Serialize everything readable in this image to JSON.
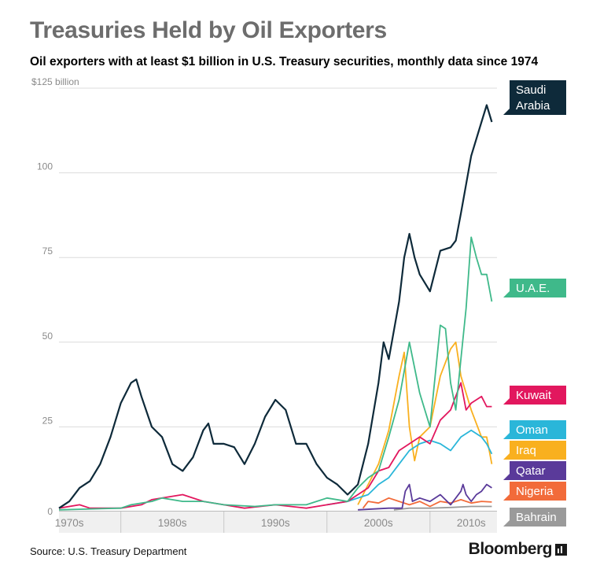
{
  "header": {
    "title": "Treasuries Held by Oil Exporters",
    "subtitle": "Oil exporters with at least $1 billion in U.S. Treasury securities,  monthly data since 1974"
  },
  "footer": {
    "source": "Source: U.S. Treasury Department",
    "brand": "Bloomberg"
  },
  "chart_data": {
    "type": "line",
    "x_range": [
      1974,
      2016.5
    ],
    "ylim": [
      0,
      125
    ],
    "y_ticks": [
      {
        "value": 0,
        "label": "0"
      },
      {
        "value": 25,
        "label": "25"
      },
      {
        "value": 50,
        "label": "50"
      },
      {
        "value": 75,
        "label": "75"
      },
      {
        "value": 100,
        "label": "100"
      },
      {
        "value": 125,
        "label": "$125 billion"
      }
    ],
    "x_labels": [
      {
        "value": 1975,
        "label": "1970s"
      },
      {
        "value": 1985,
        "label": "1980s"
      },
      {
        "value": 1995,
        "label": "1990s"
      },
      {
        "value": 2005,
        "label": "2000s"
      },
      {
        "value": 2014,
        "label": "2010s"
      }
    ],
    "x_dividers": [
      1980,
      1990,
      2000,
      2010
    ],
    "grid": true,
    "series": [
      {
        "name": "Bahrain",
        "color": "#9a9a9a",
        "label_lines": [
          "Bahrain"
        ],
        "points": [
          [
            2006.5,
            0.5
          ],
          [
            2008,
            1
          ],
          [
            2010,
            1
          ],
          [
            2012,
            1.2
          ],
          [
            2014,
            1.5
          ],
          [
            2016,
            1.5
          ]
        ]
      },
      {
        "name": "Nigeria",
        "color": "#f26b3a",
        "label_lines": [
          "Nigeria"
        ],
        "points": [
          [
            2003.5,
            1
          ],
          [
            2004,
            3
          ],
          [
            2005,
            2.5
          ],
          [
            2006,
            4
          ],
          [
            2007,
            3
          ],
          [
            2008,
            2
          ],
          [
            2009,
            3
          ],
          [
            2010,
            1.5
          ],
          [
            2011,
            3
          ],
          [
            2012,
            2.5
          ],
          [
            2013,
            3.5
          ],
          [
            2014,
            2.5
          ],
          [
            2015,
            3
          ],
          [
            2016,
            2.8
          ]
        ]
      },
      {
        "name": "Qatar",
        "color": "#5a3a9a",
        "label_lines": [
          "Qatar"
        ],
        "points": [
          [
            2003,
            0.5
          ],
          [
            2006,
            1
          ],
          [
            2007.3,
            1
          ],
          [
            2007.6,
            6
          ],
          [
            2008,
            8
          ],
          [
            2008.3,
            3
          ],
          [
            2009,
            4
          ],
          [
            2010,
            3
          ],
          [
            2011,
            5
          ],
          [
            2012,
            2
          ],
          [
            2012.5,
            4
          ],
          [
            2013,
            6
          ],
          [
            2013.2,
            8
          ],
          [
            2013.5,
            5
          ],
          [
            2014,
            3
          ],
          [
            2014.5,
            5
          ],
          [
            2015,
            6
          ],
          [
            2015.5,
            8
          ],
          [
            2016,
            7
          ]
        ]
      },
      {
        "name": "Iraq",
        "color": "#f9b01f",
        "label_lines": [
          "Iraq"
        ],
        "points": [
          [
            2003,
            2
          ],
          [
            2004,
            8
          ],
          [
            2005,
            14
          ],
          [
            2006,
            24
          ],
          [
            2007,
            40
          ],
          [
            2007.5,
            47
          ],
          [
            2008,
            25
          ],
          [
            2008.5,
            15
          ],
          [
            2009,
            22
          ],
          [
            2010,
            25
          ],
          [
            2011,
            40
          ],
          [
            2012,
            48
          ],
          [
            2012.5,
            50
          ],
          [
            2013,
            40
          ],
          [
            2014,
            30
          ],
          [
            2015,
            22
          ],
          [
            2015.5,
            22
          ],
          [
            2016,
            14
          ]
        ]
      },
      {
        "name": "Oman",
        "color": "#2ab6d9",
        "label_lines": [
          "Oman"
        ],
        "points": [
          [
            2000,
            2
          ],
          [
            2002,
            3
          ],
          [
            2004,
            5
          ],
          [
            2005,
            8
          ],
          [
            2006,
            10
          ],
          [
            2007,
            14
          ],
          [
            2008,
            18
          ],
          [
            2009,
            20
          ],
          [
            2010,
            21
          ],
          [
            2011,
            20
          ],
          [
            2012,
            18
          ],
          [
            2013,
            22
          ],
          [
            2014,
            24
          ],
          [
            2015,
            22
          ],
          [
            2015.5,
            20
          ],
          [
            2016,
            17
          ]
        ]
      },
      {
        "name": "Kuwait",
        "color": "#e2175e",
        "label_lines": [
          "Kuwait"
        ],
        "points": [
          [
            1974,
            1
          ],
          [
            1976,
            2
          ],
          [
            1977,
            1
          ],
          [
            1980,
            1
          ],
          [
            1982,
            2
          ],
          [
            1983,
            3.5
          ],
          [
            1985,
            4.5
          ],
          [
            1986,
            5
          ],
          [
            1988,
            3
          ],
          [
            1990,
            2
          ],
          [
            1992,
            1
          ],
          [
            1995,
            2
          ],
          [
            1998,
            1
          ],
          [
            2000,
            2
          ],
          [
            2002,
            3
          ],
          [
            2003,
            5
          ],
          [
            2004,
            7
          ],
          [
            2005,
            12
          ],
          [
            2006,
            13
          ],
          [
            2007,
            18
          ],
          [
            2008,
            20
          ],
          [
            2009,
            22
          ],
          [
            2010,
            20
          ],
          [
            2011,
            27
          ],
          [
            2012,
            30
          ],
          [
            2013,
            38
          ],
          [
            2013.5,
            30
          ],
          [
            2014,
            32
          ],
          [
            2015,
            34
          ],
          [
            2015.5,
            31
          ],
          [
            2016,
            31
          ]
        ]
      },
      {
        "name": "U.A.E.",
        "color": "#3fb98a",
        "label_lines": [
          "U.A.E."
        ],
        "points": [
          [
            1974,
            0.5
          ],
          [
            1980,
            1
          ],
          [
            1981,
            2
          ],
          [
            1983,
            3
          ],
          [
            1984,
            4
          ],
          [
            1986,
            3
          ],
          [
            1988,
            3
          ],
          [
            1990,
            2
          ],
          [
            1993,
            1.5
          ],
          [
            1995,
            2
          ],
          [
            1998,
            2
          ],
          [
            2000,
            4
          ],
          [
            2002,
            3
          ],
          [
            2003,
            7
          ],
          [
            2004,
            10
          ],
          [
            2005,
            12
          ],
          [
            2006,
            22
          ],
          [
            2007,
            33
          ],
          [
            2008,
            50
          ],
          [
            2009,
            35
          ],
          [
            2010,
            25
          ],
          [
            2011,
            55
          ],
          [
            2011.5,
            54
          ],
          [
            2012,
            38
          ],
          [
            2012.5,
            30
          ],
          [
            2013,
            45
          ],
          [
            2013.5,
            60
          ],
          [
            2014,
            81
          ],
          [
            2014.5,
            75
          ],
          [
            2015,
            70
          ],
          [
            2015.5,
            70
          ],
          [
            2016,
            62
          ]
        ]
      },
      {
        "name": "Saudi Arabia",
        "color": "#0e2a3a",
        "label_lines": [
          "Saudi",
          "Arabia"
        ],
        "points": [
          [
            1974,
            1
          ],
          [
            1975,
            3
          ],
          [
            1976,
            7
          ],
          [
            1977,
            9
          ],
          [
            1978,
            14
          ],
          [
            1979,
            22
          ],
          [
            1980,
            32
          ],
          [
            1981,
            38
          ],
          [
            1981.5,
            39
          ],
          [
            1982,
            34
          ],
          [
            1983,
            25
          ],
          [
            1984,
            22
          ],
          [
            1985,
            14
          ],
          [
            1986,
            12
          ],
          [
            1987,
            16
          ],
          [
            1988,
            24
          ],
          [
            1988.5,
            26
          ],
          [
            1989,
            20
          ],
          [
            1990,
            20
          ],
          [
            1991,
            19
          ],
          [
            1992,
            14
          ],
          [
            1993,
            20
          ],
          [
            1994,
            28
          ],
          [
            1995,
            33
          ],
          [
            1996,
            30
          ],
          [
            1997,
            20
          ],
          [
            1998,
            20
          ],
          [
            1999,
            14
          ],
          [
            2000,
            10
          ],
          [
            2001,
            8
          ],
          [
            2002,
            5
          ],
          [
            2003,
            8
          ],
          [
            2004,
            20
          ],
          [
            2005,
            38
          ],
          [
            2005.5,
            50
          ],
          [
            2006,
            45
          ],
          [
            2007,
            62
          ],
          [
            2007.5,
            75
          ],
          [
            2008,
            82
          ],
          [
            2008.5,
            75
          ],
          [
            2009,
            70
          ],
          [
            2010,
            65
          ],
          [
            2011,
            77
          ],
          [
            2012,
            78
          ],
          [
            2012.5,
            80
          ],
          [
            2013,
            88
          ],
          [
            2014,
            105
          ],
          [
            2015,
            115
          ],
          [
            2015.5,
            120
          ],
          [
            2016,
            115
          ]
        ]
      }
    ]
  }
}
